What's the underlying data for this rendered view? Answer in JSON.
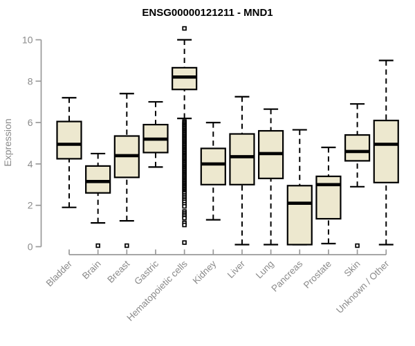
{
  "figure": {
    "title": "ENSG00000121211 - MND1"
  },
  "colors": {
    "background": "#FFFFFF",
    "box_fill": "#EDE8CF",
    "box_border": "#000000",
    "median_line": "#000000",
    "whisker": "#000000",
    "outlier_fill": "#FFFFFF",
    "axis_line": "#999999",
    "axis_text": "#8A8A8A",
    "title_text": "#000000"
  },
  "chart_data": {
    "type": "boxplot",
    "title": "ENSG00000121211 - MND1",
    "xlabel": "",
    "ylabel": "Expression",
    "ylim": [
      0,
      10
    ],
    "yticks": [
      0,
      2,
      4,
      6,
      8,
      10
    ],
    "grid": false,
    "legend": "none",
    "categories": [
      "Bladder",
      "Brain",
      "Breast",
      "Gastric",
      "Hematopoietic cells",
      "Kidney",
      "Liver",
      "Lung",
      "Pancreas",
      "Prostate",
      "Skin",
      "Unknown / Other"
    ],
    "series": [
      {
        "name": "Bladder",
        "whisker_low": 1.9,
        "q1": 4.25,
        "median": 4.95,
        "q3": 6.05,
        "whisker_high": 7.2,
        "outliers": []
      },
      {
        "name": "Brain",
        "whisker_low": 1.15,
        "q1": 2.6,
        "median": 3.15,
        "q3": 3.9,
        "whisker_high": 4.5,
        "outliers": [
          0.05
        ]
      },
      {
        "name": "Breast",
        "whisker_low": 1.25,
        "q1": 3.35,
        "median": 4.4,
        "q3": 5.35,
        "whisker_high": 7.4,
        "outliers": [
          0.05
        ]
      },
      {
        "name": "Gastric",
        "whisker_low": 3.85,
        "q1": 4.55,
        "median": 5.2,
        "q3": 5.9,
        "whisker_high": 7.0,
        "outliers": []
      },
      {
        "name": "Hematopoietic cells",
        "whisker_low": 6.2,
        "q1": 7.6,
        "median": 8.2,
        "q3": 8.65,
        "whisker_high": 10.0,
        "outliers": [
          10.55,
          6.05,
          5.99,
          5.93,
          5.87,
          5.81,
          5.75,
          5.69,
          5.63,
          5.57,
          5.51,
          5.45,
          5.39,
          5.33,
          5.27,
          5.21,
          5.15,
          5.09,
          5.03,
          4.97,
          4.91,
          4.85,
          4.79,
          4.73,
          4.67,
          4.61,
          4.55,
          4.49,
          4.43,
          4.37,
          4.31,
          4.25,
          4.19,
          4.13,
          4.07,
          4.01,
          3.95,
          3.89,
          3.83,
          3.77,
          3.71,
          3.65,
          3.59,
          3.53,
          3.47,
          3.41,
          3.35,
          3.29,
          3.23,
          3.17,
          3.11,
          3.05,
          2.99,
          2.93,
          2.87,
          2.81,
          2.75,
          2.69,
          2.63,
          2.57,
          2.48,
          2.4,
          2.32,
          2.24,
          2.16,
          2.05,
          1.95,
          1.7,
          1.62,
          1.54,
          1.46,
          1.38,
          1.15,
          1.05,
          0.2
        ]
      },
      {
        "name": "Kidney",
        "whisker_low": 1.3,
        "q1": 3.0,
        "median": 4.0,
        "q3": 4.75,
        "whisker_high": 6.0,
        "outliers": []
      },
      {
        "name": "Liver",
        "whisker_low": 0.1,
        "q1": 3.0,
        "median": 4.35,
        "q3": 5.45,
        "whisker_high": 7.25,
        "outliers": []
      },
      {
        "name": "Lung",
        "whisker_low": 0.1,
        "q1": 3.3,
        "median": 4.5,
        "q3": 5.6,
        "whisker_high": 6.65,
        "outliers": []
      },
      {
        "name": "Pancreas",
        "whisker_low": 0.1,
        "q1": 0.1,
        "median": 2.1,
        "q3": 2.95,
        "whisker_high": 5.65,
        "outliers": []
      },
      {
        "name": "Prostate",
        "whisker_low": 0.15,
        "q1": 1.35,
        "median": 3.0,
        "q3": 3.4,
        "whisker_high": 4.8,
        "outliers": []
      },
      {
        "name": "Skin",
        "whisker_low": 2.9,
        "q1": 4.15,
        "median": 4.6,
        "q3": 5.4,
        "whisker_high": 6.9,
        "outliers": [
          0.05
        ]
      },
      {
        "name": "Unknown / Other",
        "whisker_low": 0.1,
        "q1": 3.1,
        "median": 4.95,
        "q3": 6.1,
        "whisker_high": 9.0,
        "outliers": []
      }
    ]
  }
}
